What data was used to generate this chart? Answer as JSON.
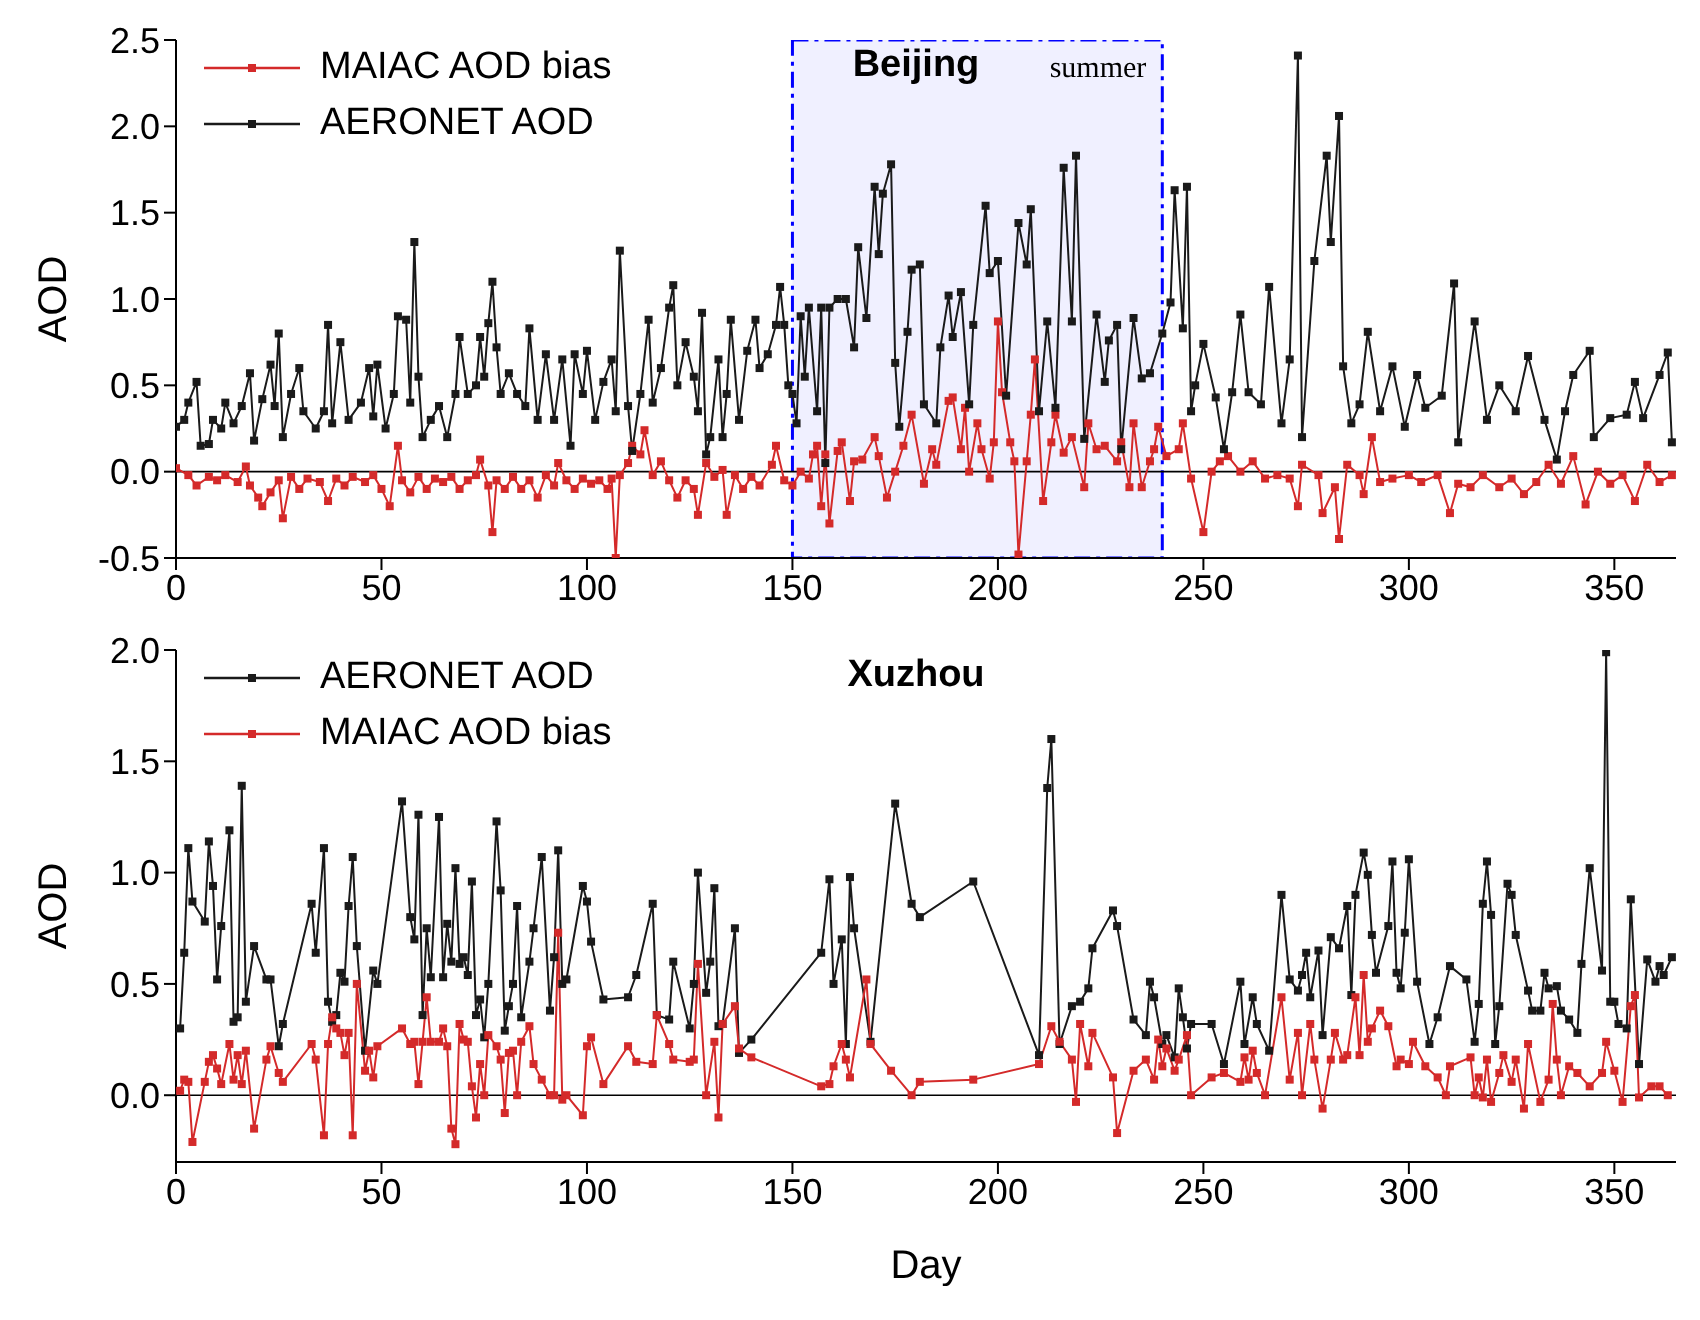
{
  "chart_data": [
    {
      "type": "line",
      "title": "Beijing",
      "ylabel": "AOD",
      "xlim": [
        0,
        365
      ],
      "xticks": [
        0,
        50,
        100,
        150,
        200,
        250,
        300,
        350
      ],
      "ylim": [
        -0.5,
        2.5
      ],
      "yticks": [
        {
          "value": -0.5,
          "label": "-0.5"
        },
        {
          "value": 0,
          "label": "0.0"
        },
        {
          "value": 0.5,
          "label": "0.5"
        },
        {
          "value": 1,
          "label": "1.0"
        },
        {
          "value": 1.5,
          "label": "1.5"
        },
        {
          "value": 2,
          "label": "2.0"
        },
        {
          "value": 2.5,
          "label": "2.5"
        }
      ],
      "legend": "top left",
      "marker": "square",
      "line_style": "solid",
      "ref_lines": [
        {
          "axis": "y",
          "value": 0,
          "color": "#000000"
        }
      ],
      "bands": [
        {
          "axis": "x",
          "from": 150,
          "to": 240,
          "label": "summer",
          "color": "#0000ff"
        }
      ],
      "series": [
        {
          "name": "MAIAC AOD bias",
          "color": "#d42a2a",
          "x": [
            0,
            3,
            5,
            8,
            10,
            12,
            15,
            17,
            18,
            20,
            21,
            23,
            25,
            26,
            28,
            30,
            32,
            35,
            37,
            39,
            41,
            43,
            46,
            48,
            50,
            52,
            54,
            55,
            57,
            59,
            61,
            63,
            65,
            67,
            69,
            71,
            73,
            74,
            76,
            77,
            78,
            80,
            82,
            84,
            86,
            88,
            90,
            92,
            93,
            95,
            97,
            99,
            101,
            103,
            105,
            106,
            107,
            108,
            110,
            111,
            113,
            114,
            116,
            118,
            120,
            122,
            124,
            126,
            127,
            129,
            131,
            133,
            134,
            136,
            138,
            140,
            142,
            145,
            146,
            148,
            150,
            152,
            154,
            155,
            156,
            157,
            158,
            159,
            161,
            162,
            164,
            165,
            167,
            170,
            171,
            173,
            175,
            177,
            179,
            182,
            184,
            185,
            188,
            189,
            191,
            192,
            193,
            195,
            196,
            198,
            199,
            200,
            201,
            203,
            204,
            205,
            207,
            208,
            209,
            211,
            213,
            214,
            216,
            218,
            221,
            222,
            224,
            226,
            229,
            230,
            232,
            233,
            235,
            237,
            238,
            239,
            241,
            244,
            245,
            247,
            250,
            252,
            254,
            256,
            259,
            262,
            265,
            268,
            271,
            273,
            274,
            278,
            279,
            282,
            283,
            285,
            288,
            289,
            291,
            293,
            296,
            300,
            303,
            307,
            310,
            312,
            315,
            318,
            322,
            325,
            328,
            331,
            334,
            337,
            340,
            343,
            346,
            349,
            352,
            355,
            358,
            361,
            364
          ],
          "values": [
            0.02,
            -0.02,
            -0.08,
            -0.03,
            -0.05,
            -0.02,
            -0.06,
            0.03,
            -0.08,
            -0.15,
            -0.2,
            -0.12,
            -0.05,
            -0.27,
            -0.03,
            -0.1,
            -0.04,
            -0.06,
            -0.17,
            -0.04,
            -0.08,
            -0.03,
            -0.06,
            -0.02,
            -0.1,
            -0.2,
            0.15,
            -0.05,
            -0.12,
            -0.03,
            -0.1,
            -0.04,
            -0.06,
            -0.03,
            -0.1,
            -0.05,
            -0.02,
            0.07,
            -0.08,
            -0.35,
            -0.05,
            -0.1,
            -0.03,
            -0.1,
            -0.05,
            -0.15,
            -0.02,
            -0.08,
            0.05,
            -0.05,
            -0.1,
            -0.04,
            -0.07,
            -0.05,
            -0.1,
            -0.04,
            -0.5,
            -0.02,
            0.05,
            0.15,
            0.1,
            0.24,
            -0.02,
            0.06,
            -0.05,
            -0.15,
            -0.05,
            -0.1,
            -0.25,
            0.05,
            -0.03,
            0.01,
            -0.25,
            -0.02,
            -0.1,
            -0.03,
            -0.08,
            0.04,
            0.15,
            -0.05,
            -0.08,
            0,
            -0.04,
            0.1,
            0.15,
            -0.2,
            0.1,
            -0.3,
            0.12,
            0.17,
            -0.17,
            0.06,
            0.07,
            0.2,
            0.09,
            -0.15,
            0,
            0.15,
            0.33,
            -0.07,
            0.13,
            0.04,
            0.41,
            0.43,
            0.13,
            0.37,
            0,
            0.28,
            0.13,
            -0.04,
            0.17,
            0.87,
            0.46,
            0.17,
            0.06,
            -0.48,
            0.06,
            0.33,
            0.65,
            -0.17,
            0.17,
            0.33,
            0.11,
            0.2,
            -0.09,
            0.28,
            0.13,
            0.15,
            0.06,
            0.17,
            -0.09,
            0.28,
            -0.09,
            0.06,
            0.13,
            0.26,
            0.09,
            0.13,
            0.28,
            -0.04,
            -0.35,
            0,
            0.06,
            0.09,
            0,
            0.06,
            -0.04,
            -0.02,
            -0.04,
            -0.2,
            0.04,
            -0.02,
            -0.24,
            -0.09,
            -0.39,
            0.04,
            -0.02,
            -0.13,
            0.2,
            -0.06,
            -0.04,
            -0.02,
            -0.06,
            -0.02,
            -0.24,
            -0.07,
            -0.09,
            -0.02,
            -0.09,
            -0.04,
            -0.13,
            -0.06,
            0.04,
            -0.07,
            0.09,
            -0.19,
            0,
            -0.07,
            -0.02,
            -0.17,
            0.04,
            -0.06,
            -0.02
          ]
        },
        {
          "name": "AERONET AOD",
          "color": "#1a1a1a",
          "x": [
            0,
            2,
            3,
            5,
            6,
            8,
            9,
            11,
            12,
            14,
            16,
            18,
            19,
            21,
            23,
            24,
            25,
            26,
            28,
            30,
            31,
            34,
            36,
            37,
            38,
            40,
            42,
            45,
            47,
            48,
            49,
            51,
            53,
            54,
            56,
            57,
            58,
            59,
            60,
            62,
            64,
            66,
            68,
            69,
            71,
            73,
            74,
            75,
            76,
            77,
            78,
            79,
            81,
            83,
            85,
            86,
            88,
            90,
            92,
            94,
            96,
            97,
            99,
            100,
            102,
            104,
            106,
            107,
            108,
            110,
            111,
            113,
            115,
            116,
            118,
            120,
            121,
            122,
            124,
            126,
            127,
            128,
            129,
            130,
            132,
            133,
            134,
            135,
            137,
            139,
            141,
            142,
            144,
            146,
            147,
            148,
            149,
            150,
            151,
            152,
            153,
            154,
            156,
            157,
            158,
            159,
            161,
            163,
            165,
            166,
            168,
            170,
            171,
            172,
            174,
            175,
            176,
            178,
            179,
            181,
            182,
            185,
            186,
            188,
            189,
            191,
            193,
            194,
            197,
            198,
            200,
            202,
            205,
            207,
            208,
            210,
            212,
            214,
            216,
            218,
            219,
            221,
            224,
            226,
            227,
            229,
            230,
            233,
            235,
            237,
            240,
            242,
            243,
            245,
            246,
            247,
            248,
            250,
            253,
            255,
            257,
            259,
            261,
            264,
            266,
            269,
            271,
            273,
            274,
            277,
            280,
            281,
            283,
            284,
            286,
            288,
            290,
            293,
            296,
            299,
            302,
            304,
            308,
            311,
            312,
            316,
            319,
            322,
            326,
            329,
            333,
            336,
            338,
            340,
            344,
            345,
            349,
            353,
            355,
            357,
            361,
            363,
            364
          ],
          "values": [
            0.26,
            0.3,
            0.4,
            0.52,
            0.15,
            0.16,
            0.3,
            0.25,
            0.4,
            0.28,
            0.38,
            0.57,
            0.18,
            0.42,
            0.62,
            0.38,
            0.8,
            0.2,
            0.45,
            0.6,
            0.35,
            0.25,
            0.35,
            0.85,
            0.28,
            0.75,
            0.3,
            0.4,
            0.6,
            0.32,
            0.62,
            0.25,
            0.45,
            0.9,
            0.88,
            0.4,
            1.33,
            0.55,
            0.2,
            0.3,
            0.38,
            0.2,
            0.45,
            0.78,
            0.45,
            0.5,
            0.78,
            0.55,
            0.86,
            1.1,
            0.72,
            0.45,
            0.57,
            0.45,
            0.38,
            0.83,
            0.3,
            0.68,
            0.3,
            0.65,
            0.15,
            0.68,
            0.45,
            0.7,
            0.3,
            0.52,
            0.65,
            0.35,
            1.28,
            0.38,
            0.12,
            0.45,
            0.88,
            0.4,
            0.6,
            0.95,
            1.08,
            0.5,
            0.75,
            0.55,
            0.35,
            0.92,
            0.1,
            0.2,
            0.65,
            0.2,
            0.45,
            0.88,
            0.3,
            0.7,
            0.88,
            0.6,
            0.68,
            0.85,
            1.07,
            0.85,
            0.5,
            0.45,
            0.28,
            0.9,
            0.55,
            0.95,
            0.35,
            0.95,
            0.05,
            0.95,
            1.0,
            1.0,
            0.72,
            1.3,
            0.89,
            1.65,
            1.26,
            1.61,
            1.78,
            0.63,
            0.26,
            0.81,
            1.17,
            1.2,
            0.39,
            0.28,
            0.72,
            1.02,
            0.78,
            1.04,
            0.39,
            0.85,
            1.54,
            1.15,
            1.22,
            0.44,
            1.44,
            1.2,
            1.52,
            0.35,
            0.87,
            0.37,
            1.76,
            0.87,
            1.83,
            0.19,
            0.91,
            0.52,
            0.76,
            0.85,
            0.13,
            0.89,
            0.54,
            0.57,
            0.8,
            0.98,
            1.63,
            0.83,
            1.65,
            0.35,
            0.5,
            0.74,
            0.43,
            0.13,
            0.46,
            0.91,
            0.46,
            0.39,
            1.07,
            0.28,
            0.65,
            2.41,
            0.2,
            1.22,
            1.83,
            1.33,
            2.06,
            0.61,
            0.28,
            0.39,
            0.81,
            0.35,
            0.61,
            0.26,
            0.56,
            0.37,
            0.44,
            1.09,
            0.17,
            0.87,
            0.3,
            0.5,
            0.35,
            0.67,
            0.3,
            0.07,
            0.35,
            0.56,
            0.7,
            0.2,
            0.31,
            0.33,
            0.52,
            0.31,
            0.56,
            0.69,
            0.17
          ]
        }
      ]
    },
    {
      "type": "line",
      "title": "Xuzhou",
      "xlabel": "Day",
      "ylabel": "AOD",
      "xlim": [
        0,
        365
      ],
      "xticks": [
        0,
        50,
        100,
        150,
        200,
        250,
        300,
        350
      ],
      "ylim": [
        -0.3,
        2.0
      ],
      "yticks": [
        {
          "value": 0,
          "label": "0.0"
        },
        {
          "value": 0.5,
          "label": "0.5"
        },
        {
          "value": 1,
          "label": "1.0"
        },
        {
          "value": 1.5,
          "label": "1.5"
        },
        {
          "value": 2,
          "label": "2.0"
        }
      ],
      "legend": "top left",
      "marker": "square",
      "line_style": "solid",
      "ref_lines": [
        {
          "axis": "y",
          "value": 0,
          "color": "#000000"
        }
      ],
      "series": [
        {
          "name": "AERONET AOD",
          "color": "#1a1a1a",
          "x": [
            1,
            2,
            3,
            4,
            7,
            8,
            9,
            10,
            11,
            13,
            14,
            15,
            16,
            17,
            19,
            22,
            23,
            25,
            26,
            33,
            34,
            36,
            37,
            38,
            39,
            40,
            41,
            42,
            43,
            44,
            46,
            48,
            49,
            55,
            57,
            58,
            59,
            60,
            61,
            62,
            64,
            65,
            66,
            67,
            68,
            69,
            70,
            71,
            72,
            73,
            74,
            75,
            76,
            78,
            79,
            80,
            81,
            82,
            83,
            84,
            86,
            87,
            89,
            91,
            92,
            93,
            94,
            95,
            99,
            100,
            101,
            104,
            110,
            112,
            116,
            117,
            120,
            121,
            125,
            126,
            127,
            129,
            130,
            131,
            132,
            133,
            136,
            137,
            140,
            157,
            159,
            160,
            162,
            163,
            164,
            165,
            169,
            175,
            179,
            181,
            194,
            210,
            212,
            213,
            215,
            218,
            220,
            222,
            223,
            228,
            229,
            233,
            236,
            237,
            238,
            240,
            241,
            243,
            244,
            245,
            246,
            247,
            252,
            255,
            259,
            260,
            262,
            263,
            266,
            269,
            271,
            273,
            274,
            275,
            276,
            278,
            279,
            281,
            283,
            285,
            286,
            287,
            289,
            290,
            291,
            292,
            295,
            296,
            297,
            298,
            299,
            300,
            302,
            305,
            307,
            310,
            314,
            316,
            317,
            318,
            319,
            320,
            321,
            322,
            324,
            325,
            326,
            329,
            330,
            332,
            333,
            334,
            336,
            337,
            339,
            341,
            342,
            344,
            347,
            348,
            349,
            350,
            351,
            353,
            354,
            356,
            358,
            360,
            361,
            362,
            364
          ],
          "values": [
            0.3,
            0.64,
            1.11,
            0.87,
            0.78,
            1.14,
            0.94,
            0.52,
            0.76,
            1.19,
            0.33,
            0.35,
            1.39,
            0.42,
            0.67,
            0.52,
            0.52,
            0.22,
            0.32,
            0.86,
            0.64,
            1.11,
            0.42,
            0.33,
            0.36,
            0.55,
            0.51,
            0.85,
            1.07,
            0.67,
            0.2,
            0.56,
            0.5,
            1.32,
            0.8,
            0.7,
            1.26,
            0.36,
            0.75,
            0.53,
            1.25,
            0.53,
            0.77,
            0.6,
            1.02,
            0.59,
            0.62,
            0.54,
            0.96,
            0.36,
            0.43,
            0.26,
            0.5,
            1.23,
            0.92,
            0.29,
            0.4,
            0.5,
            0.85,
            0.35,
            0.6,
            0.75,
            1.07,
            0.38,
            0.62,
            1.1,
            0.5,
            0.52,
            0.94,
            0.87,
            0.69,
            0.43,
            0.44,
            0.54,
            0.86,
            0.36,
            0.34,
            0.6,
            0.3,
            0.5,
            1.0,
            0.46,
            0.6,
            0.93,
            0.31,
            0.32,
            0.75,
            0.19,
            0.25,
            0.64,
            0.97,
            0.5,
            0.7,
            0.23,
            0.98,
            0.75,
            0.24,
            1.31,
            0.86,
            0.8,
            0.96,
            0.18,
            1.38,
            1.6,
            0.23,
            0.4,
            0.42,
            0.48,
            0.66,
            0.83,
            0.76,
            0.34,
            0.27,
            0.51,
            0.44,
            0.23,
            0.27,
            0.17,
            0.48,
            0.35,
            0.21,
            0.32,
            0.32,
            0.14,
            0.51,
            0.23,
            0.44,
            0.32,
            0.2,
            0.9,
            0.52,
            0.47,
            0.54,
            0.64,
            0.44,
            0.65,
            0.27,
            0.71,
            0.66,
            0.85,
            0.45,
            0.9,
            1.09,
            0.99,
            0.72,
            0.55,
            0.76,
            1.05,
            0.55,
            0.48,
            0.73,
            1.06,
            0.51,
            0.23,
            0.35,
            0.58,
            0.52,
            0.24,
            0.41,
            0.86,
            1.05,
            0.81,
            0.23,
            0.4,
            0.95,
            0.9,
            0.72,
            0.47,
            0.38,
            0.38,
            0.55,
            0.48,
            0.49,
            0.38,
            0.34,
            0.28,
            0.59,
            1.02,
            0.56,
            1.99,
            0.42,
            0.42,
            0.32,
            0.3,
            0.88,
            0.14,
            0.61,
            0.51,
            0.58,
            0.54,
            0.62
          ]
        },
        {
          "name": "MAIAC AOD bias",
          "color": "#d42a2a",
          "x": [
            1,
            2,
            3,
            4,
            7,
            8,
            9,
            10,
            11,
            13,
            14,
            15,
            16,
            17,
            19,
            22,
            23,
            25,
            26,
            33,
            34,
            36,
            37,
            38,
            39,
            40,
            41,
            42,
            43,
            44,
            46,
            47,
            48,
            49,
            55,
            57,
            58,
            59,
            60,
            61,
            62,
            64,
            65,
            66,
            67,
            68,
            69,
            70,
            71,
            72,
            73,
            74,
            75,
            76,
            78,
            79,
            80,
            81,
            82,
            83,
            84,
            86,
            87,
            89,
            91,
            92,
            93,
            94,
            95,
            99,
            100,
            101,
            104,
            110,
            112,
            116,
            117,
            120,
            121,
            125,
            126,
            127,
            129,
            131,
            132,
            133,
            136,
            137,
            140,
            157,
            159,
            160,
            162,
            163,
            164,
            168,
            169,
            174,
            179,
            181,
            194,
            210,
            213,
            215,
            218,
            219,
            220,
            222,
            223,
            228,
            229,
            233,
            236,
            238,
            239,
            240,
            241,
            243,
            244,
            246,
            247,
            252,
            255,
            259,
            260,
            261,
            262,
            263,
            265,
            269,
            271,
            273,
            274,
            276,
            277,
            279,
            281,
            282,
            284,
            285,
            287,
            288,
            289,
            290,
            291,
            293,
            295,
            297,
            298,
            300,
            301,
            304,
            307,
            309,
            310,
            315,
            316,
            317,
            318,
            319,
            320,
            322,
            323,
            325,
            326,
            328,
            329,
            332,
            334,
            335,
            336,
            337,
            339,
            341,
            344,
            347,
            348,
            350,
            352,
            354,
            355,
            356,
            359,
            361,
            363
          ],
          "values": [
            0.02,
            0.07,
            0.06,
            -0.21,
            0.06,
            0.15,
            0.18,
            0.12,
            0.05,
            0.23,
            0.07,
            0.18,
            0.05,
            0.2,
            -0.15,
            0.16,
            0.22,
            0.1,
            0.06,
            0.23,
            0.16,
            -0.18,
            0.23,
            0.35,
            0.3,
            0.28,
            0.18,
            0.28,
            -0.18,
            0.5,
            0.11,
            0.2,
            0.08,
            0.22,
            0.3,
            0.23,
            0.24,
            0.05,
            0.24,
            0.44,
            0.24,
            0.24,
            0.3,
            0.22,
            -0.15,
            -0.22,
            0.32,
            0.25,
            0.24,
            0.04,
            -0.1,
            0.14,
            0,
            0.27,
            0.22,
            0.16,
            -0.08,
            0.19,
            0.2,
            0,
            0.24,
            0.31,
            0.14,
            0.07,
            0,
            0,
            0.73,
            -0.02,
            0,
            -0.09,
            0.22,
            0.26,
            0.05,
            0.22,
            0.15,
            0.14,
            0.36,
            0.23,
            0.16,
            0.15,
            0.16,
            0.59,
            0,
            0.24,
            -0.1,
            0.32,
            0.4,
            0.21,
            0.17,
            0.04,
            0.05,
            0.13,
            0.23,
            0.16,
            0.08,
            0.52,
            0.23,
            0.11,
            0,
            0.06,
            0.07,
            0.14,
            0.31,
            0.24,
            0.16,
            -0.03,
            0.32,
            0.13,
            0.28,
            0.08,
            -0.17,
            0.11,
            0.16,
            0.07,
            0.25,
            0.13,
            0.21,
            0.11,
            0.16,
            0.27,
            0,
            0.08,
            0.1,
            0.06,
            0.17,
            0.07,
            0.2,
            0.1,
            0,
            0.44,
            0.07,
            0.28,
            0,
            0.32,
            0.16,
            -0.06,
            0.16,
            0.28,
            0.16,
            0.18,
            0.44,
            0.18,
            0.54,
            0.24,
            0.3,
            0.38,
            0.31,
            0.13,
            0.16,
            0.14,
            0.24,
            0.13,
            0.08,
            0,
            0.13,
            0.17,
            0,
            0.08,
            -0.01,
            0.16,
            -0.03,
            0.1,
            0.18,
            0.06,
            0.16,
            -0.06,
            0.23,
            -0.03,
            0.07,
            0.41,
            0.16,
            0,
            0.13,
            0.1,
            0.04,
            0.1,
            0.24,
            0.11,
            -0.03,
            0.4,
            0.45,
            -0.01,
            0.04,
            0.04,
            0
          ]
        }
      ]
    }
  ]
}
